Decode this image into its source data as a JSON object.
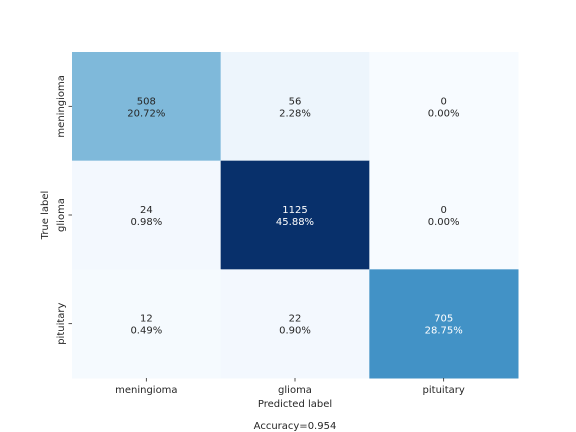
{
  "chart_data": {
    "type": "heatmap",
    "title": "",
    "xlabel": "Predicted label",
    "ylabel": "True label",
    "x_categories": [
      "meningioma",
      "glioma",
      "pituitary"
    ],
    "y_categories": [
      "meningioma",
      "glioma",
      "pituitary"
    ],
    "counts": [
      [
        508,
        56,
        0
      ],
      [
        24,
        1125,
        0
      ],
      [
        12,
        22,
        705
      ]
    ],
    "percentages": [
      [
        "20.72%",
        "2.28%",
        "0.00%"
      ],
      [
        "0.98%",
        "45.88%",
        "0.00%"
      ],
      [
        "0.49%",
        "0.90%",
        "28.75%"
      ]
    ],
    "footer": "Accuracy=0.954",
    "colormap": "Blues",
    "colorbar": false,
    "gridlines": false
  }
}
